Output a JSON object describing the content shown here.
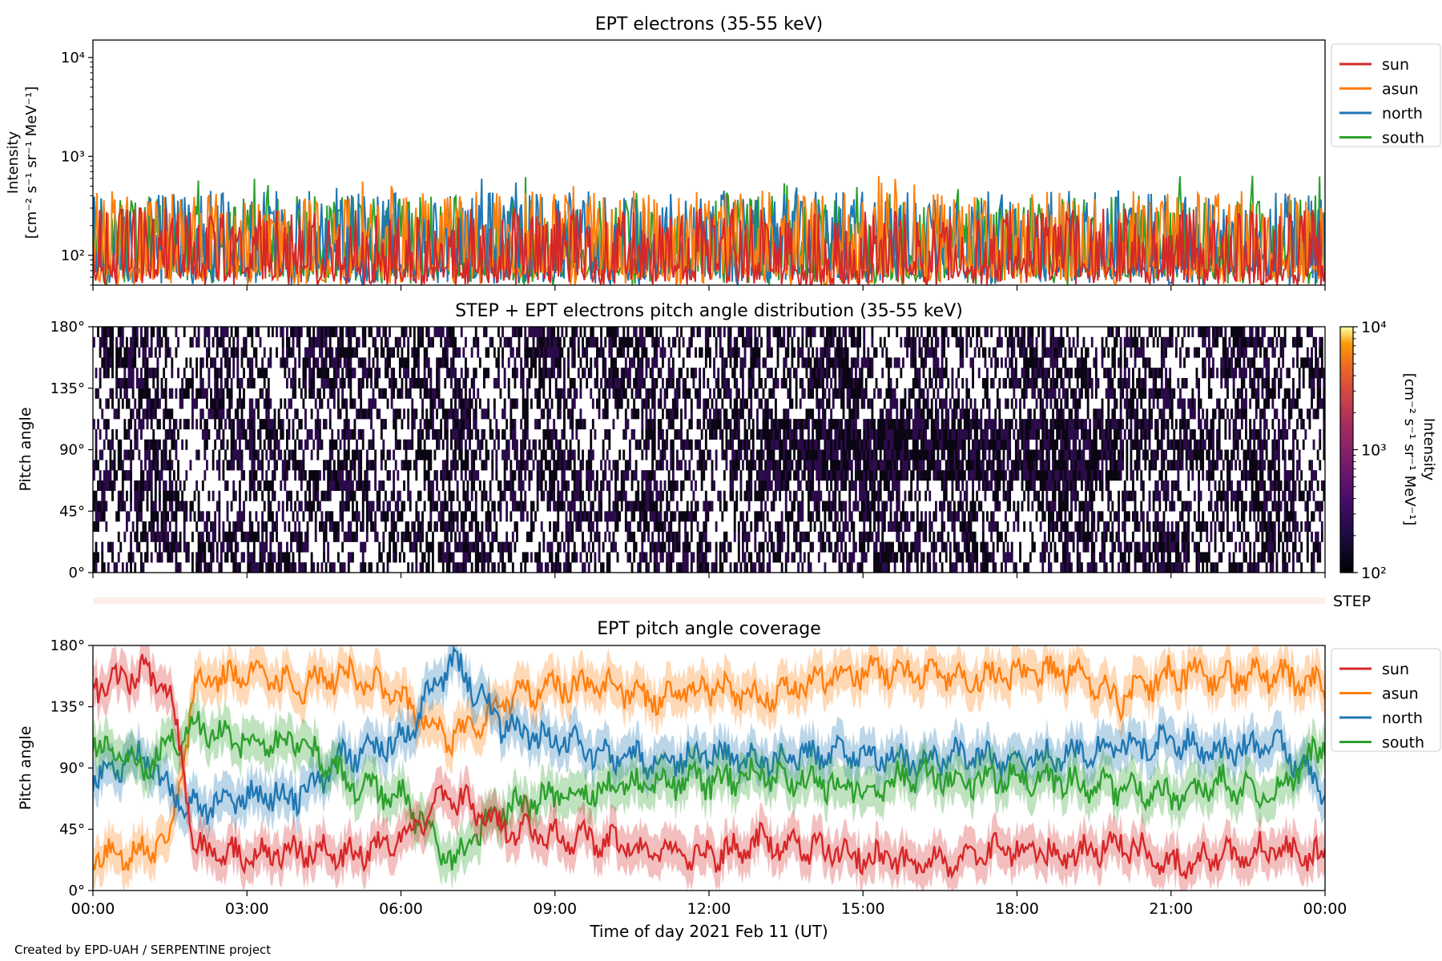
{
  "footer": "Created by EPD-UAH / SERPENTINE project",
  "colors": {
    "sun": "#d62728",
    "asun": "#ff7f0e",
    "north": "#1f77b4",
    "south": "#2ca02c",
    "step_band": "#fdeee8",
    "pad_fill": "#2b0a4a"
  },
  "chart_data": [
    {
      "id": "intensity",
      "type": "line",
      "title": "EPT electrons (35-55 keV)",
      "ylabel_line1": "Intensity",
      "ylabel_line2": "[cm⁻² s⁻¹ sr⁻¹ MeV⁻¹]",
      "yscale": "log",
      "ylim": [
        50,
        15000
      ],
      "yticks": [
        {
          "value": 100,
          "label": "10²"
        },
        {
          "value": 1000,
          "label": "10³"
        },
        {
          "value": 10000,
          "label": "10⁴"
        }
      ],
      "xlim_hours": [
        0,
        24
      ],
      "legend": {
        "position": "outside-right-top",
        "entries": [
          "sun",
          "asun",
          "north",
          "south"
        ]
      },
      "series": [
        {
          "name": "sun",
          "typical_range": [
            50,
            300
          ],
          "note_values": "noisy intensities near background, spikes up to ~350"
        },
        {
          "name": "asun",
          "typical_range": [
            60,
            450
          ],
          "spike_max": 650
        },
        {
          "name": "north",
          "typical_range": [
            60,
            450
          ],
          "spike_max": 600
        },
        {
          "name": "south",
          "typical_range": [
            60,
            400
          ],
          "spike_max": 650
        }
      ]
    },
    {
      "id": "pad",
      "type": "heatmap",
      "title": "STEP + EPT electrons pitch angle distribution (35-55 keV)",
      "ylabel": "Pitch angle",
      "ylim": [
        0,
        180
      ],
      "yticks": [
        {
          "value": 0,
          "label": "0°"
        },
        {
          "value": 45,
          "label": "45°"
        },
        {
          "value": 90,
          "label": "90°"
        },
        {
          "value": 135,
          "label": "135°"
        },
        {
          "value": 180,
          "label": "180°"
        }
      ],
      "colorbar": {
        "label_line1": "Intensity",
        "label_line2": "[cm⁻² s⁻¹ sr⁻¹ MeV⁻¹]",
        "scale": "log",
        "range": [
          100,
          10000
        ],
        "ticks": [
          {
            "value": 100,
            "label": "10²"
          },
          {
            "value": 1000,
            "label": "10³"
          },
          {
            "value": 10000,
            "label": "10⁴"
          }
        ],
        "colormap": "inferno"
      },
      "step_label": "STEP",
      "note": "intensities mostly near 10² (dark purple), gaps shown white"
    },
    {
      "id": "coverage",
      "type": "line",
      "title": "EPT pitch angle coverage",
      "ylabel": "Pitch angle",
      "xlabel": "Time of day 2021 Feb 11 (UT)",
      "ylim": [
        0,
        180
      ],
      "yticks": [
        {
          "value": 0,
          "label": "0°"
        },
        {
          "value": 45,
          "label": "45°"
        },
        {
          "value": 90,
          "label": "90°"
        },
        {
          "value": 135,
          "label": "135°"
        },
        {
          "value": 180,
          "label": "180°"
        }
      ],
      "xticks": [
        {
          "hour": 0,
          "label": "00:00"
        },
        {
          "hour": 3,
          "label": "03:00"
        },
        {
          "hour": 6,
          "label": "06:00"
        },
        {
          "hour": 9,
          "label": "09:00"
        },
        {
          "hour": 12,
          "label": "12:00"
        },
        {
          "hour": 15,
          "label": "15:00"
        },
        {
          "hour": 18,
          "label": "18:00"
        },
        {
          "hour": 21,
          "label": "21:00"
        },
        {
          "hour": 24,
          "label": "00:00"
        }
      ],
      "legend": {
        "position": "outside-right-top",
        "entries": [
          "sun",
          "asun",
          "north",
          "south"
        ]
      },
      "band_halfwidth_deg": 15,
      "series": [
        {
          "name": "sun",
          "hours": [
            0,
            1,
            1.5,
            2,
            3,
            4,
            5,
            6,
            7,
            8,
            9,
            10,
            11,
            12,
            13,
            14,
            15,
            16,
            17,
            18,
            19,
            20,
            21,
            22,
            23,
            24
          ],
          "values": [
            150,
            160,
            150,
            30,
            25,
            30,
            25,
            40,
            70,
            45,
            40,
            35,
            30,
            25,
            35,
            30,
            25,
            20,
            25,
            30,
            25,
            35,
            20,
            25,
            30,
            25
          ]
        },
        {
          "name": "asun",
          "hours": [
            0,
            1,
            1.5,
            2,
            3,
            4,
            5,
            6,
            7,
            8,
            9,
            10,
            11,
            12,
            13,
            14,
            15,
            16,
            17,
            18,
            19,
            20,
            21,
            22,
            23,
            24
          ],
          "values": [
            25,
            30,
            40,
            150,
            160,
            150,
            160,
            140,
            110,
            140,
            150,
            150,
            140,
            150,
            140,
            155,
            160,
            160,
            155,
            160,
            160,
            140,
            160,
            155,
            160,
            150
          ]
        },
        {
          "name": "north",
          "hours": [
            0,
            1,
            1.5,
            2,
            3,
            4,
            5,
            6,
            7,
            8,
            9,
            10,
            11,
            12,
            13,
            14,
            15,
            16,
            17,
            18,
            19,
            20,
            21,
            22,
            23,
            24
          ],
          "values": [
            80,
            100,
            70,
            60,
            70,
            70,
            100,
            110,
            170,
            120,
            110,
            100,
            95,
            100,
            95,
            100,
            100,
            95,
            100,
            95,
            100,
            105,
            110,
            100,
            110,
            75
          ]
        },
        {
          "name": "south",
          "hours": [
            0,
            1,
            1.5,
            2,
            3,
            4,
            5,
            6,
            7,
            8,
            9,
            10,
            11,
            12,
            13,
            14,
            15,
            16,
            17,
            18,
            19,
            20,
            21,
            22,
            23,
            24
          ],
          "values": [
            110,
            90,
            110,
            120,
            110,
            110,
            80,
            70,
            20,
            60,
            70,
            75,
            80,
            80,
            85,
            80,
            75,
            85,
            80,
            85,
            80,
            75,
            70,
            80,
            70,
            110
          ]
        }
      ]
    }
  ]
}
